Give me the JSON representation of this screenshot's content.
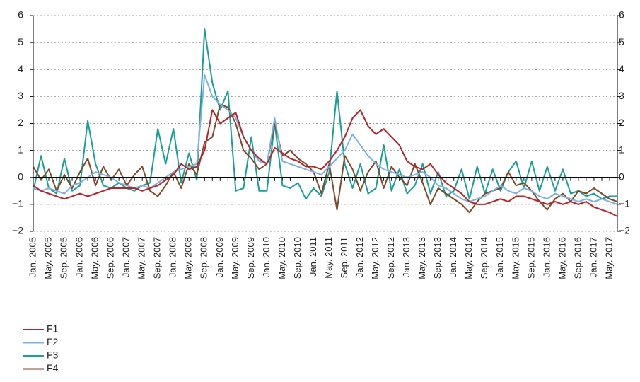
{
  "chart_data": {
    "type": "line",
    "categories": [
      "Jan. 2005",
      null,
      "May. 2005",
      null,
      "Sep. 2005",
      null,
      "Jan. 2006",
      null,
      "May. 2006",
      null,
      "Sep. 2006",
      null,
      "Jan. 2007",
      null,
      "May. 2007",
      null,
      "Sep. 2007",
      null,
      "Jan. 2008",
      null,
      "May. 2008",
      null,
      "Sep. 2008",
      null,
      "Jan. 2009",
      null,
      "May. 2009",
      null,
      "Sep. 2009",
      null,
      "Jan. 2010",
      null,
      "May. 2010",
      null,
      "Sep. 2010",
      null,
      "Jan. 2011",
      null,
      "May. 2011",
      null,
      "Sep. 2011",
      null,
      "Jan. 2012",
      null,
      "May. 2012",
      null,
      "Sep. 2012",
      null,
      "Jan. 2013",
      null,
      "May. 2013",
      null,
      "Sep. 2013",
      null,
      "Jan. 2014",
      null,
      "May. 2014",
      null,
      "Sep. 2014",
      null,
      "Jan. 2015",
      null,
      "May. 2015",
      null,
      "Sep. 2015",
      null,
      "Jan. 2016",
      null,
      "May. 2016",
      null,
      "Sep. 2016",
      null,
      "Jan. 2017",
      null,
      "May. 2017",
      null
    ],
    "series": [
      {
        "name": "F1",
        "color": "#b3252b",
        "values": [
          -0.3,
          -0.5,
          -0.6,
          -0.7,
          -0.8,
          -0.7,
          -0.6,
          -0.7,
          -0.6,
          -0.5,
          -0.4,
          -0.4,
          -0.4,
          -0.4,
          -0.5,
          -0.4,
          -0.3,
          -0.1,
          0.1,
          0.5,
          0.3,
          0.4,
          1.0,
          2.5,
          2.0,
          2.2,
          2.4,
          1.5,
          1.0,
          0.7,
          0.5,
          1.1,
          0.9,
          0.7,
          0.6,
          0.4,
          0.4,
          0.3,
          0.6,
          1.0,
          1.5,
          2.2,
          2.5,
          1.9,
          1.6,
          1.8,
          1.5,
          1.2,
          0.6,
          0.4,
          0.3,
          0.5,
          0.1,
          -0.2,
          -0.4,
          -0.6,
          -0.9,
          -1.0,
          -1.0,
          -0.9,
          -0.8,
          -0.9,
          -0.7,
          -0.7,
          -0.8,
          -0.9,
          -1.0,
          -0.9,
          -1.0,
          -0.9,
          -1.0,
          -0.9,
          -1.1,
          -1.2,
          -1.3,
          -1.45
        ]
      },
      {
        "name": "F2",
        "color": "#7eb1de",
        "values": [
          -0.4,
          -0.5,
          -0.4,
          -0.5,
          -0.6,
          -0.3,
          -0.2,
          0.0,
          0.2,
          0.1,
          0.0,
          -0.2,
          -0.3,
          -0.4,
          -0.3,
          -0.4,
          -0.2,
          0.0,
          0.2,
          0.3,
          0.4,
          0.5,
          3.8,
          3.0,
          2.7,
          2.5,
          2.2,
          1.5,
          1.0,
          0.6,
          0.5,
          2.2,
          0.6,
          0.5,
          0.4,
          0.3,
          0.2,
          0.1,
          0.4,
          0.7,
          1.0,
          1.6,
          1.2,
          0.8,
          0.5,
          0.3,
          0.2,
          0.1,
          0.0,
          0.1,
          0.2,
          0.0,
          -0.3,
          -0.4,
          -0.6,
          -0.8,
          -0.9,
          -0.8,
          -0.7,
          -0.5,
          -0.3,
          -0.5,
          -0.6,
          -0.4,
          -0.5,
          -0.7,
          -0.8,
          -0.6,
          -0.7,
          -0.8,
          -0.9,
          -0.8,
          -0.9,
          -0.8,
          -0.9,
          -1.0
        ]
      },
      {
        "name": "F3",
        "color": "#1a9e96",
        "values": [
          -0.5,
          0.8,
          -0.4,
          -0.6,
          0.7,
          -0.5,
          -0.3,
          2.1,
          0.5,
          -0.3,
          -0.4,
          -0.2,
          -0.4,
          -0.5,
          -0.3,
          -0.2,
          1.8,
          0.5,
          1.8,
          -0.2,
          0.9,
          -0.1,
          5.5,
          3.5,
          2.5,
          3.2,
          -0.5,
          -0.4,
          1.5,
          -0.5,
          -0.5,
          2.0,
          -0.3,
          -0.4,
          -0.2,
          -0.8,
          -0.4,
          -0.7,
          0.2,
          3.2,
          0.5,
          -0.4,
          0.5,
          -0.6,
          -0.4,
          1.2,
          -0.5,
          0.3,
          -0.6,
          -0.3,
          0.5,
          -0.6,
          0.2,
          -0.7,
          -0.5,
          0.3,
          -0.8,
          0.4,
          -0.6,
          0.3,
          -0.5,
          0.2,
          0.6,
          -0.4,
          0.6,
          -0.5,
          0.4,
          -0.5,
          0.3,
          -0.6,
          -0.5,
          -0.7,
          -0.6,
          -0.8,
          -0.7,
          -0.7
        ]
      },
      {
        "name": "F4",
        "color": "#7b4a2a",
        "values": [
          0.4,
          -0.1,
          0.3,
          -0.5,
          0.1,
          -0.4,
          0.2,
          0.7,
          -0.3,
          0.4,
          -0.1,
          0.3,
          -0.3,
          0.1,
          0.4,
          -0.5,
          -0.7,
          -0.3,
          0.2,
          -0.4,
          0.5,
          0.1,
          1.3,
          1.5,
          2.7,
          2.6,
          2.0,
          1.0,
          0.7,
          0.3,
          0.5,
          2.0,
          0.8,
          1.0,
          0.7,
          0.5,
          0.2,
          -0.6,
          0.5,
          -1.2,
          0.8,
          0.3,
          -0.5,
          0.2,
          0.6,
          -0.4,
          0.4,
          0.0,
          -0.3,
          0.5,
          -0.2,
          -1.0,
          -0.4,
          -0.6,
          -0.8,
          -1.0,
          -1.3,
          -0.9,
          -0.6,
          -0.5,
          -0.4,
          0.2,
          -0.3,
          -0.2,
          -0.5,
          -0.9,
          -1.2,
          -0.8,
          -0.6,
          -0.9,
          -0.5,
          -0.6,
          -0.4,
          -0.6,
          -0.8,
          -0.9
        ]
      }
    ],
    "ylim": [
      -2,
      6
    ],
    "yticks": [
      {
        "value": -2,
        "label": "−2"
      },
      {
        "value": -1,
        "label": "−1"
      },
      0,
      1,
      2,
      3,
      4,
      5,
      6
    ],
    "y2lim": [
      -2,
      6
    ],
    "y2ticks": [
      {
        "value": -2,
        "label": "−2"
      },
      {
        "value": -1,
        "label": "−1"
      },
      0,
      1,
      2,
      3,
      4,
      5,
      6
    ],
    "grid": true,
    "legend": "bottom-left"
  }
}
